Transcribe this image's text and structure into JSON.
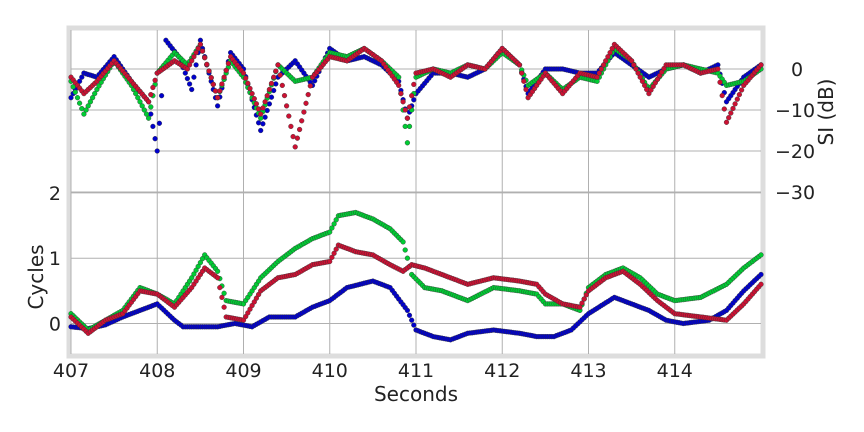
{
  "chart_data": {
    "type": "scatter",
    "xlabel": "Seconds",
    "ylabel_left": "Cycles",
    "ylabel_right": "SI (dB)",
    "x_ticks": [
      407,
      408,
      409,
      410,
      411,
      412,
      413,
      414
    ],
    "y_ticks_left": [
      0,
      1,
      2
    ],
    "y_ticks_right": [
      0,
      -10,
      -20,
      -30
    ],
    "xlim": [
      407,
      415
    ],
    "grid": true,
    "series": [
      {
        "color": "#0000cc",
        "cycles": [
          [
            407.0,
            -0.05
          ],
          [
            407.2,
            -0.08
          ],
          [
            407.4,
            -0.02
          ],
          [
            407.6,
            0.1
          ],
          [
            407.8,
            0.2
          ],
          [
            408.0,
            0.3
          ],
          [
            408.2,
            0.05
          ],
          [
            408.3,
            -0.05
          ],
          [
            408.5,
            -0.05
          ],
          [
            408.7,
            -0.05
          ],
          [
            408.9,
            0.0
          ],
          [
            409.1,
            -0.05
          ],
          [
            409.3,
            0.1
          ],
          [
            409.6,
            0.1
          ],
          [
            409.8,
            0.25
          ],
          [
            410.0,
            0.35
          ],
          [
            410.2,
            0.55
          ],
          [
            410.5,
            0.65
          ],
          [
            410.7,
            0.55
          ],
          [
            410.9,
            0.2
          ],
          [
            411.0,
            -0.1
          ],
          [
            411.2,
            -0.2
          ],
          [
            411.4,
            -0.25
          ],
          [
            411.6,
            -0.15
          ],
          [
            411.9,
            -0.1
          ],
          [
            412.2,
            -0.15
          ],
          [
            412.4,
            -0.2
          ],
          [
            412.6,
            -0.2
          ],
          [
            412.8,
            -0.1
          ],
          [
            413.0,
            0.15
          ],
          [
            413.3,
            0.4
          ],
          [
            413.5,
            0.3
          ],
          [
            413.7,
            0.2
          ],
          [
            413.9,
            0.05
          ],
          [
            414.1,
            0.0
          ],
          [
            414.4,
            0.05
          ],
          [
            414.6,
            0.2
          ],
          [
            414.8,
            0.5
          ],
          [
            415.0,
            0.75
          ]
        ],
        "si": [
          [
            407.0,
            -7
          ],
          [
            407.15,
            -1
          ],
          [
            407.3,
            -2
          ],
          [
            407.5,
            3
          ],
          [
            407.7,
            -3
          ],
          [
            407.9,
            -8
          ],
          [
            408.0,
            -20
          ],
          [
            408.1,
            7
          ],
          [
            408.25,
            3
          ],
          [
            408.4,
            -5
          ],
          [
            408.5,
            7
          ],
          [
            408.7,
            -9
          ],
          [
            408.85,
            4
          ],
          [
            409.0,
            0
          ],
          [
            409.2,
            -15
          ],
          [
            409.4,
            -2
          ],
          [
            409.6,
            2
          ],
          [
            409.8,
            -4
          ],
          [
            410.0,
            5
          ],
          [
            410.2,
            2
          ],
          [
            410.4,
            3
          ],
          [
            410.6,
            1
          ],
          [
            410.8,
            -3
          ],
          [
            410.9,
            -12
          ],
          [
            411.0,
            -6
          ],
          [
            411.2,
            -1
          ],
          [
            411.4,
            -1
          ],
          [
            411.6,
            -2
          ],
          [
            411.8,
            0
          ],
          [
            412.0,
            5
          ],
          [
            412.2,
            1
          ],
          [
            412.3,
            -6
          ],
          [
            412.5,
            0
          ],
          [
            412.7,
            0
          ],
          [
            412.9,
            -1
          ],
          [
            413.1,
            -1
          ],
          [
            413.3,
            4
          ],
          [
            413.5,
            1
          ],
          [
            413.7,
            -2
          ],
          [
            413.9,
            0
          ],
          [
            414.1,
            1
          ],
          [
            414.3,
            -1
          ],
          [
            414.5,
            1
          ],
          [
            414.6,
            -8
          ],
          [
            414.8,
            -2
          ],
          [
            415.0,
            1
          ]
        ]
      },
      {
        "color": "#00cc33",
        "cycles": [
          [
            407.0,
            0.15
          ],
          [
            407.2,
            -0.1
          ],
          [
            407.4,
            0.05
          ],
          [
            407.6,
            0.2
          ],
          [
            407.8,
            0.55
          ],
          [
            408.0,
            0.45
          ],
          [
            408.2,
            0.3
          ],
          [
            408.4,
            0.7
          ],
          [
            408.55,
            1.05
          ],
          [
            408.7,
            0.8
          ],
          [
            408.8,
            0.35
          ],
          [
            409.0,
            0.3
          ],
          [
            409.2,
            0.7
          ],
          [
            409.4,
            0.95
          ],
          [
            409.6,
            1.15
          ],
          [
            409.8,
            1.3
          ],
          [
            410.0,
            1.4
          ],
          [
            410.1,
            1.65
          ],
          [
            410.3,
            1.7
          ],
          [
            410.5,
            1.6
          ],
          [
            410.7,
            1.45
          ],
          [
            410.85,
            1.25
          ],
          [
            410.95,
            0.75
          ],
          [
            411.1,
            0.55
          ],
          [
            411.3,
            0.5
          ],
          [
            411.6,
            0.35
          ],
          [
            411.9,
            0.55
          ],
          [
            412.2,
            0.5
          ],
          [
            412.4,
            0.45
          ],
          [
            412.5,
            0.3
          ],
          [
            412.7,
            0.3
          ],
          [
            412.9,
            0.2
          ],
          [
            413.0,
            0.55
          ],
          [
            413.2,
            0.75
          ],
          [
            413.4,
            0.85
          ],
          [
            413.6,
            0.7
          ],
          [
            413.8,
            0.45
          ],
          [
            414.0,
            0.35
          ],
          [
            414.3,
            0.4
          ],
          [
            414.6,
            0.6
          ],
          [
            414.8,
            0.85
          ],
          [
            415.0,
            1.05
          ]
        ],
        "si": [
          [
            407.0,
            -3
          ],
          [
            407.15,
            -11
          ],
          [
            407.3,
            -5
          ],
          [
            407.5,
            2
          ],
          [
            407.7,
            -4
          ],
          [
            407.9,
            -12
          ],
          [
            408.0,
            -1
          ],
          [
            408.2,
            4
          ],
          [
            408.35,
            1
          ],
          [
            408.5,
            6
          ],
          [
            408.7,
            -7
          ],
          [
            408.85,
            2
          ],
          [
            409.0,
            -2
          ],
          [
            409.2,
            -12
          ],
          [
            409.4,
            1
          ],
          [
            409.6,
            -3
          ],
          [
            409.8,
            -2
          ],
          [
            410.0,
            4
          ],
          [
            410.2,
            3
          ],
          [
            410.4,
            5
          ],
          [
            410.6,
            2
          ],
          [
            410.8,
            -2
          ],
          [
            410.9,
            -18
          ],
          [
            411.0,
            -2
          ],
          [
            411.2,
            0
          ],
          [
            411.4,
            -1
          ],
          [
            411.6,
            1
          ],
          [
            411.8,
            0
          ],
          [
            412.0,
            4
          ],
          [
            412.2,
            1
          ],
          [
            412.3,
            -4
          ],
          [
            412.5,
            -1
          ],
          [
            412.7,
            -5
          ],
          [
            412.9,
            -2
          ],
          [
            413.1,
            -3
          ],
          [
            413.3,
            5
          ],
          [
            413.5,
            2
          ],
          [
            413.7,
            -5
          ],
          [
            413.9,
            0
          ],
          [
            414.1,
            1
          ],
          [
            414.3,
            0
          ],
          [
            414.5,
            -1
          ],
          [
            414.6,
            -4
          ],
          [
            414.8,
            -3
          ],
          [
            415.0,
            0
          ]
        ]
      },
      {
        "color": "#cc1133",
        "cycles": [
          [
            407.0,
            0.1
          ],
          [
            407.2,
            -0.15
          ],
          [
            407.4,
            0.05
          ],
          [
            407.6,
            0.15
          ],
          [
            407.8,
            0.5
          ],
          [
            408.0,
            0.45
          ],
          [
            408.2,
            0.25
          ],
          [
            408.4,
            0.55
          ],
          [
            408.55,
            0.85
          ],
          [
            408.7,
            0.7
          ],
          [
            408.8,
            0.1
          ],
          [
            409.0,
            0.05
          ],
          [
            409.2,
            0.5
          ],
          [
            409.4,
            0.7
          ],
          [
            409.6,
            0.75
          ],
          [
            409.8,
            0.9
          ],
          [
            410.0,
            0.95
          ],
          [
            410.1,
            1.2
          ],
          [
            410.3,
            1.1
          ],
          [
            410.5,
            1.05
          ],
          [
            410.7,
            0.9
          ],
          [
            410.85,
            0.8
          ],
          [
            410.95,
            0.9
          ],
          [
            411.1,
            0.85
          ],
          [
            411.3,
            0.75
          ],
          [
            411.6,
            0.6
          ],
          [
            411.9,
            0.7
          ],
          [
            412.2,
            0.65
          ],
          [
            412.4,
            0.6
          ],
          [
            412.5,
            0.45
          ],
          [
            412.7,
            0.3
          ],
          [
            412.9,
            0.25
          ],
          [
            413.0,
            0.5
          ],
          [
            413.2,
            0.7
          ],
          [
            413.4,
            0.8
          ],
          [
            413.6,
            0.6
          ],
          [
            413.8,
            0.35
          ],
          [
            414.0,
            0.15
          ],
          [
            414.3,
            0.1
          ],
          [
            414.6,
            0.05
          ],
          [
            414.8,
            0.3
          ],
          [
            415.0,
            0.6
          ]
        ],
        "si": [
          [
            407.0,
            -2
          ],
          [
            407.15,
            -6
          ],
          [
            407.3,
            -3
          ],
          [
            407.5,
            2
          ],
          [
            407.7,
            -3
          ],
          [
            407.9,
            -8
          ],
          [
            408.0,
            -1
          ],
          [
            408.2,
            2
          ],
          [
            408.35,
            0
          ],
          [
            408.5,
            6
          ],
          [
            408.7,
            -7
          ],
          [
            408.85,
            3
          ],
          [
            409.0,
            -1
          ],
          [
            409.2,
            -11
          ],
          [
            409.4,
            1
          ],
          [
            409.6,
            -19
          ],
          [
            409.8,
            -2
          ],
          [
            410.0,
            3
          ],
          [
            410.2,
            2
          ],
          [
            410.4,
            5
          ],
          [
            410.6,
            2
          ],
          [
            410.8,
            -4
          ],
          [
            410.9,
            -12
          ],
          [
            411.0,
            -1
          ],
          [
            411.2,
            0
          ],
          [
            411.4,
            -2
          ],
          [
            411.6,
            1
          ],
          [
            411.8,
            0
          ],
          [
            412.0,
            5
          ],
          [
            412.2,
            1
          ],
          [
            412.3,
            -7
          ],
          [
            412.5,
            -1
          ],
          [
            412.7,
            -6
          ],
          [
            412.9,
            -1
          ],
          [
            413.1,
            -2
          ],
          [
            413.3,
            6
          ],
          [
            413.5,
            2
          ],
          [
            413.7,
            -6
          ],
          [
            413.9,
            1
          ],
          [
            414.1,
            1
          ],
          [
            414.3,
            -1
          ],
          [
            414.5,
            0
          ],
          [
            414.6,
            -13
          ],
          [
            414.8,
            -4
          ],
          [
            415.0,
            1
          ]
        ]
      }
    ]
  }
}
